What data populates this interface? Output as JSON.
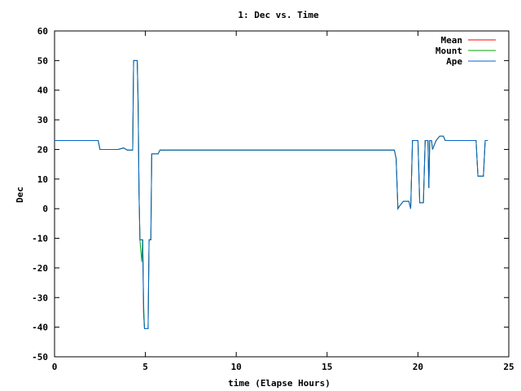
{
  "chart_data": {
    "type": "line",
    "title": "1: Dec vs. Time",
    "xlabel": "time (Elapse Hours)",
    "ylabel": "Dec",
    "xlim": [
      0,
      25
    ],
    "ylim": [
      -50,
      60
    ],
    "xticks": [
      "0",
      "5",
      "10",
      "15",
      "20",
      "25"
    ],
    "yticks": [
      "60",
      "50",
      "40",
      "30",
      "20",
      "10",
      "0",
      "-10",
      "-20",
      "-30",
      "-40",
      "-50"
    ],
    "legend_position": "top-right",
    "series": [
      {
        "name": "Mean",
        "color": "#ff0000",
        "points": [
          [
            0,
            23
          ],
          [
            2.4,
            23
          ],
          [
            2.5,
            20
          ],
          [
            3.5,
            20
          ],
          [
            3.8,
            20.5
          ],
          [
            4.0,
            19.8
          ],
          [
            4.3,
            19.8
          ],
          [
            4.35,
            50
          ],
          [
            4.55,
            50
          ],
          [
            4.6,
            35
          ],
          [
            4.65,
            5
          ],
          [
            4.7,
            -10.5
          ],
          [
            4.85,
            -10.5
          ],
          [
            4.9,
            -35
          ],
          [
            4.95,
            -40.5
          ],
          [
            5.15,
            -40.5
          ],
          [
            5.2,
            -10.5
          ],
          [
            5.3,
            -10.5
          ],
          [
            5.35,
            18.5
          ],
          [
            5.7,
            18.5
          ],
          [
            5.8,
            19.8
          ],
          [
            18.7,
            19.8
          ],
          [
            18.8,
            17
          ],
          [
            18.9,
            0
          ],
          [
            19.0,
            1
          ],
          [
            19.2,
            2.5
          ],
          [
            19.5,
            2.5
          ],
          [
            19.6,
            0
          ],
          [
            19.7,
            23
          ],
          [
            20.0,
            23
          ],
          [
            20.1,
            2
          ],
          [
            20.3,
            2
          ],
          [
            20.4,
            23
          ],
          [
            20.55,
            23
          ],
          [
            20.6,
            7
          ],
          [
            20.65,
            23
          ],
          [
            20.75,
            23
          ],
          [
            20.8,
            20
          ],
          [
            21.0,
            23
          ],
          [
            21.2,
            24.5
          ],
          [
            21.4,
            24.5
          ],
          [
            21.5,
            23
          ],
          [
            23.2,
            23
          ],
          [
            23.3,
            11
          ],
          [
            23.6,
            11
          ],
          [
            23.7,
            23
          ],
          [
            23.85,
            23
          ]
        ]
      },
      {
        "name": "Mount",
        "color": "#00aa00",
        "points": [
          [
            0,
            23
          ],
          [
            2.4,
            23
          ],
          [
            2.5,
            20
          ],
          [
            3.5,
            20
          ],
          [
            3.8,
            20.5
          ],
          [
            4.0,
            19.8
          ],
          [
            4.3,
            19.8
          ],
          [
            4.35,
            50
          ],
          [
            4.55,
            50
          ],
          [
            4.6,
            35
          ],
          [
            4.65,
            5
          ],
          [
            4.7,
            -10.5
          ],
          [
            4.8,
            -18
          ],
          [
            4.85,
            -10.5
          ],
          [
            4.9,
            -32
          ],
          [
            4.95,
            -40.5
          ],
          [
            5.15,
            -40.5
          ],
          [
            5.2,
            -10.5
          ],
          [
            5.3,
            -10.5
          ],
          [
            5.35,
            18.5
          ],
          [
            5.7,
            18.5
          ],
          [
            5.8,
            19.8
          ],
          [
            18.7,
            19.8
          ],
          [
            18.8,
            17
          ],
          [
            18.9,
            0
          ],
          [
            19.0,
            1
          ],
          [
            19.2,
            2.5
          ],
          [
            19.5,
            2.5
          ],
          [
            19.6,
            0
          ],
          [
            19.7,
            23
          ],
          [
            20.0,
            23
          ],
          [
            20.1,
            2
          ],
          [
            20.3,
            2
          ],
          [
            20.4,
            23
          ],
          [
            20.55,
            23
          ],
          [
            20.6,
            7
          ],
          [
            20.65,
            23
          ],
          [
            20.75,
            23
          ],
          [
            20.8,
            20
          ],
          [
            21.0,
            23
          ],
          [
            21.2,
            24.5
          ],
          [
            21.4,
            24.5
          ],
          [
            21.5,
            23
          ],
          [
            23.2,
            23
          ],
          [
            23.3,
            11
          ],
          [
            23.6,
            11
          ],
          [
            23.62,
            13
          ],
          [
            23.7,
            23
          ],
          [
            23.85,
            23
          ]
        ]
      },
      {
        "name": "Ape",
        "color": "#0066cc",
        "points": [
          [
            0,
            23
          ],
          [
            2.4,
            23
          ],
          [
            2.5,
            20
          ],
          [
            3.5,
            20
          ],
          [
            3.8,
            20.5
          ],
          [
            4.0,
            19.8
          ],
          [
            4.3,
            19.8
          ],
          [
            4.35,
            50
          ],
          [
            4.55,
            50
          ],
          [
            4.6,
            35
          ],
          [
            4.65,
            5
          ],
          [
            4.7,
            -10.5
          ],
          [
            4.85,
            -10.5
          ],
          [
            4.9,
            -35
          ],
          [
            4.95,
            -40.5
          ],
          [
            5.15,
            -40.5
          ],
          [
            5.2,
            -10.5
          ],
          [
            5.3,
            -10.5
          ],
          [
            5.35,
            18.5
          ],
          [
            5.7,
            18.5
          ],
          [
            5.8,
            19.8
          ],
          [
            18.7,
            19.8
          ],
          [
            18.8,
            17
          ],
          [
            18.9,
            0
          ],
          [
            19.0,
            1
          ],
          [
            19.2,
            2.5
          ],
          [
            19.5,
            2.5
          ],
          [
            19.6,
            0
          ],
          [
            19.7,
            23
          ],
          [
            20.0,
            23
          ],
          [
            20.1,
            2
          ],
          [
            20.3,
            2
          ],
          [
            20.4,
            23
          ],
          [
            20.55,
            23
          ],
          [
            20.6,
            7
          ],
          [
            20.65,
            23
          ],
          [
            20.75,
            23
          ],
          [
            20.8,
            20
          ],
          [
            21.0,
            23
          ],
          [
            21.2,
            24.5
          ],
          [
            21.4,
            24.5
          ],
          [
            21.5,
            23
          ],
          [
            23.2,
            23
          ],
          [
            23.3,
            11
          ],
          [
            23.6,
            11
          ],
          [
            23.7,
            23
          ],
          [
            23.85,
            23
          ]
        ]
      }
    ]
  }
}
